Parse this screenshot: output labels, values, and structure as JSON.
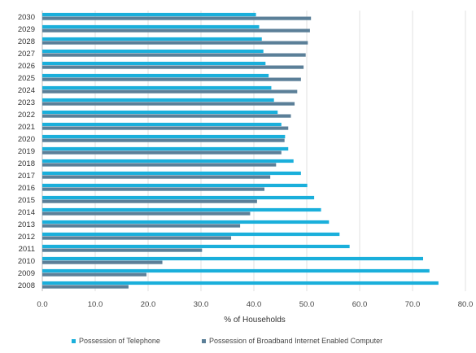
{
  "chart_data": {
    "type": "bar",
    "orientation": "horizontal",
    "categories": [
      "2030",
      "2029",
      "2028",
      "2027",
      "2026",
      "2025",
      "2024",
      "2023",
      "2022",
      "2021",
      "2020",
      "2019",
      "2018",
      "2017",
      "2016",
      "2015",
      "2014",
      "2013",
      "2012",
      "2011",
      "2010",
      "2009",
      "2008"
    ],
    "series": [
      {
        "name": "Possession of Telephone",
        "color": "#1aafdb",
        "values": [
          40.4,
          41.0,
          41.5,
          41.8,
          42.2,
          42.8,
          43.3,
          43.8,
          44.5,
          45.2,
          45.9,
          46.5,
          47.5,
          48.9,
          50.1,
          51.4,
          52.7,
          54.2,
          56.2,
          58.1,
          72.0,
          73.2,
          74.9
        ]
      },
      {
        "name": "Possession of Broadband Internet Enabled Computer",
        "color": "#5b7f98",
        "values": [
          50.8,
          50.6,
          50.2,
          49.8,
          49.4,
          48.9,
          48.2,
          47.7,
          47.0,
          46.5,
          45.8,
          45.2,
          44.2,
          43.1,
          42.0,
          40.6,
          39.3,
          37.4,
          35.7,
          30.2,
          22.7,
          19.7,
          16.3
        ]
      }
    ],
    "xlabel": "% of Households",
    "xlim": [
      0,
      80
    ],
    "xticks": [
      "0.0",
      "10.0",
      "20.0",
      "30.0",
      "40.0",
      "50.0",
      "60.0",
      "70.0",
      "80.0"
    ],
    "grid": true,
    "legend_position": "bottom"
  }
}
